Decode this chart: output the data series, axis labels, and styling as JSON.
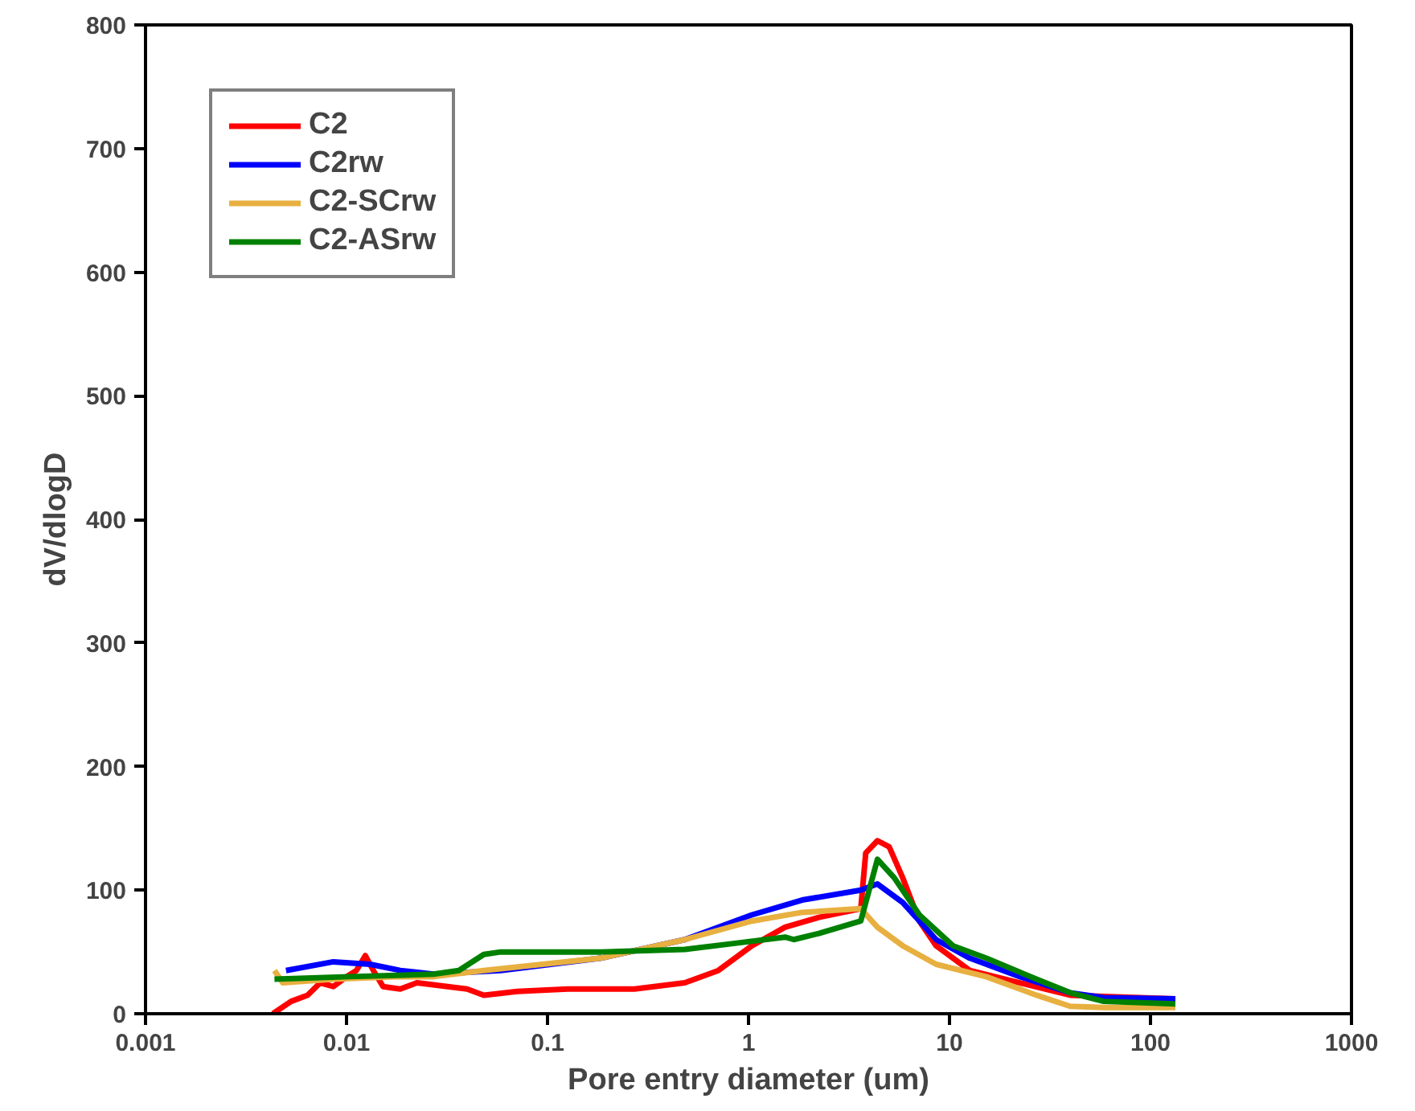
{
  "chart_data": {
    "type": "line",
    "xlabel": "Pore entry diameter (um)",
    "ylabel": "dV/dlogD",
    "log": "x",
    "xlim": [
      0.001,
      1000
    ],
    "xticks": [
      0.001,
      0.01,
      0.1,
      1,
      10,
      100,
      1000
    ],
    "ylim": [
      0,
      800
    ],
    "yticks": [
      0,
      100,
      200,
      300,
      400,
      500,
      600,
      700,
      800
    ],
    "grid": false,
    "legend": "top left",
    "marker": "none",
    "line_style": "solid",
    "series": [
      {
        "name": "C2",
        "color": "#ff0000",
        "x": [
          0.0043,
          0.0053,
          0.0064,
          0.0074,
          0.0086,
          0.01,
          0.0112,
          0.0124,
          0.0136,
          0.0152,
          0.0185,
          0.0224,
          0.0398,
          0.0482,
          0.0708,
          0.126,
          0.271,
          0.482,
          0.708,
          1.04,
          1.52,
          2.24,
          3.62,
          3.83,
          4.38,
          5.01,
          5.85,
          7.08,
          8.58,
          12.6,
          22.4,
          39.8,
          58.5,
          133
        ],
        "values": [
          0,
          10,
          15,
          25,
          22,
          30,
          35,
          47,
          35,
          22,
          20,
          25,
          20,
          15,
          18,
          20,
          20,
          25,
          35,
          55,
          70,
          78,
          85,
          130,
          140,
          135,
          110,
          75,
          55,
          35,
          25,
          15,
          14,
          12
        ]
      },
      {
        "name": "C2rw",
        "color": "#0000ff",
        "x": [
          0.005,
          0.0086,
          0.0131,
          0.0185,
          0.0271,
          0.0585,
          0.185,
          0.482,
          1.04,
          1.85,
          3.62,
          4.38,
          5.85,
          8.58,
          12.6,
          22.4,
          39.8,
          58.5,
          133
        ],
        "values": [
          35,
          42,
          40,
          35,
          32,
          35,
          45,
          60,
          80,
          92,
          100,
          105,
          90,
          60,
          45,
          30,
          17,
          13,
          12
        ]
      },
      {
        "name": "C2-SCrw",
        "color": "#e8b040",
        "x": [
          0.00438,
          0.00482,
          0.0086,
          0.0185,
          0.0271,
          0.0482,
          0.185,
          0.482,
          1.04,
          1.85,
          3.62,
          4.38,
          5.85,
          8.58,
          15.2,
          27.1,
          39.8,
          58.5,
          133
        ],
        "values": [
          35,
          25,
          28,
          30,
          30,
          35,
          45,
          60,
          75,
          82,
          85,
          70,
          55,
          40,
          30,
          15,
          6,
          5,
          5
        ]
      },
      {
        "name": "C2-ASrw",
        "color": "#008000",
        "x": [
          0.00438,
          0.0104,
          0.0271,
          0.0362,
          0.0482,
          0.0585,
          0.185,
          0.482,
          0.858,
          1.52,
          1.68,
          2.24,
          3.62,
          4.38,
          5.31,
          7.08,
          10.4,
          15.2,
          27.1,
          39.8,
          58.5,
          133
        ],
        "values": [
          28,
          30,
          32,
          35,
          48,
          50,
          50,
          52,
          57,
          62,
          60,
          65,
          75,
          125,
          110,
          80,
          55,
          45,
          28,
          17,
          10,
          8
        ]
      }
    ]
  }
}
